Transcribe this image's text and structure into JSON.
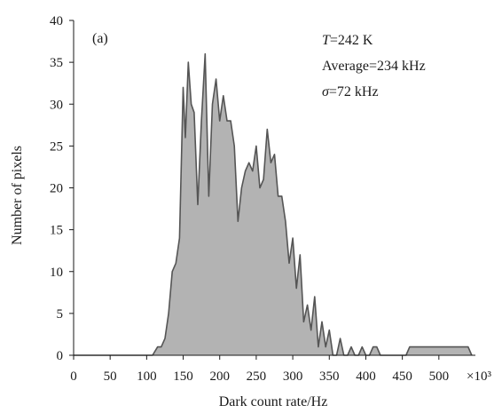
{
  "chart_data": {
    "type": "area",
    "panel_label": "(a)",
    "xlabel": "Dark count rate/Hz",
    "ylabel": "Number of pixels",
    "x_multiplier_label": "×10³",
    "xlim": [
      0,
      550
    ],
    "ylim": [
      0,
      40
    ],
    "x_ticks": [
      0,
      50,
      100,
      150,
      200,
      250,
      300,
      350,
      400,
      450,
      500
    ],
    "y_ticks": [
      0,
      5,
      10,
      15,
      20,
      25,
      30,
      35,
      40
    ],
    "fill_color": "#b3b3b3",
    "line_color": "#555555",
    "annotations": {
      "temperature": {
        "symbol": "T",
        "text": "=242 K"
      },
      "average": {
        "text": "Average=234 kHz"
      },
      "sigma": {
        "symbol": "σ",
        "text": "=72 kHz"
      }
    },
    "x": [
      0,
      108,
      115,
      120,
      125,
      130,
      135,
      140,
      145,
      150,
      153,
      157,
      161,
      165,
      170,
      175,
      180,
      185,
      190,
      195,
      200,
      205,
      210,
      215,
      220,
      225,
      230,
      235,
      240,
      245,
      250,
      255,
      260,
      265,
      270,
      275,
      280,
      285,
      290,
      295,
      300,
      305,
      310,
      315,
      320,
      325,
      330,
      335,
      340,
      345,
      350,
      355,
      360,
      365,
      370,
      375,
      380,
      385,
      390,
      395,
      400,
      405,
      410,
      415,
      420,
      450,
      455,
      460,
      500,
      505,
      540,
      545
    ],
    "y": [
      0,
      0,
      1,
      1,
      2,
      5,
      10,
      11,
      14,
      32,
      26,
      35,
      30,
      29,
      18,
      28,
      36,
      19,
      30,
      33,
      28,
      31,
      28,
      28,
      25,
      16,
      20,
      22,
      23,
      22,
      25,
      20,
      21,
      27,
      23,
      24,
      19,
      19,
      16,
      11,
      14,
      8,
      12,
      4,
      6,
      3,
      7,
      1,
      4,
      1,
      3,
      0,
      0,
      2,
      0,
      0,
      1,
      0,
      0,
      1,
      0,
      0,
      1,
      1,
      0,
      0,
      0,
      1,
      1,
      1,
      1,
      0
    ]
  }
}
